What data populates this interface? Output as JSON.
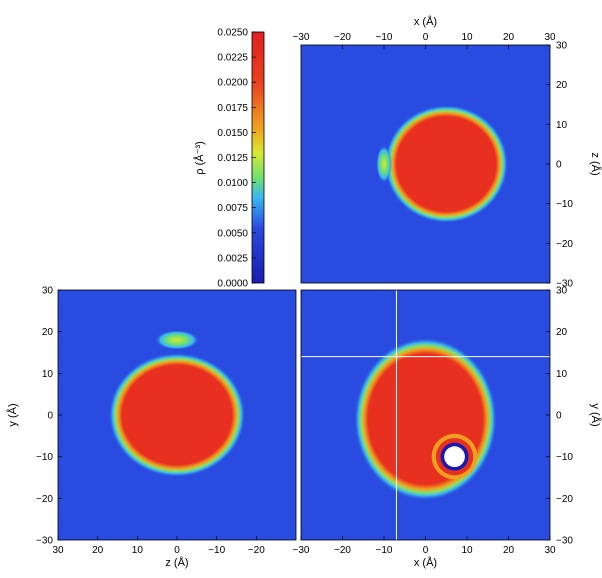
{
  "chart_data": {
    "type": "heatmap",
    "colorbar": {
      "label": "ρ (Å⁻³)",
      "range": [
        0.0,
        0.025
      ],
      "ticks": [
        "0.0250",
        "0.0225",
        "0.0200",
        "0.0175",
        "0.0150",
        "0.0125",
        "0.0100",
        "0.0075",
        "0.0050",
        "0.0025",
        "0.0000"
      ],
      "colors": [
        "#1a1ab0",
        "#2a4be0",
        "#39b8f0",
        "#6fe070",
        "#d8e830",
        "#f0a020",
        "#e84020",
        "#e02020"
      ]
    },
    "panels": [
      {
        "id": "xz",
        "xlabel": "x (Å)",
        "ylabel": "z (Å)",
        "xlim": [
          -30,
          30
        ],
        "ylim": [
          -30,
          30
        ],
        "xticks": [
          "−30",
          "−20",
          "−10",
          "0",
          "10",
          "20",
          "30"
        ],
        "yticks": [
          "30",
          "20",
          "10",
          "0",
          "−10",
          "−20",
          "−30"
        ],
        "features": [
          {
            "kind": "blob",
            "cx": 5,
            "cy": 0,
            "rx": 13,
            "ry": 13,
            "value": 0.025
          },
          {
            "kind": "blob",
            "cx": -10,
            "cy": 0,
            "rx": 1.2,
            "ry": 3,
            "value": 0.015
          }
        ]
      },
      {
        "id": "zy",
        "xlabel": "z (Å)",
        "ylabel": "y (Å)",
        "xlim": [
          30,
          -30
        ],
        "ylim": [
          -30,
          30
        ],
        "xticks": [
          "30",
          "20",
          "10",
          "0",
          "−10",
          "−20"
        ],
        "yticks": [
          "30",
          "20",
          "10",
          "0",
          "−10",
          "−20",
          "−30"
        ],
        "features": [
          {
            "kind": "blob",
            "cx": 0,
            "cy": 0,
            "rx": 15,
            "ry": 13,
            "value": 0.025
          },
          {
            "kind": "blob",
            "cx": 0,
            "cy": 18,
            "rx": 3.5,
            "ry": 1.5,
            "value": 0.012
          }
        ]
      },
      {
        "id": "xy",
        "xlabel": "x (Å)",
        "ylabel": "y (Å)",
        "xlim": [
          -30,
          30
        ],
        "ylim": [
          -30,
          30
        ],
        "xticks": [
          "−30",
          "−20",
          "−10",
          "0",
          "10",
          "20",
          "30"
        ],
        "yticks": [
          "30",
          "20",
          "10",
          "0",
          "−10",
          "−20",
          "−30"
        ],
        "crosshair": {
          "x": -7,
          "y": 14
        },
        "features": [
          {
            "kind": "blob",
            "cx": 0,
            "cy": -1,
            "rx": 15,
            "ry": 17,
            "value": 0.025
          },
          {
            "kind": "hole",
            "cx": 7,
            "cy": -10,
            "r": 2.5
          }
        ]
      }
    ]
  }
}
